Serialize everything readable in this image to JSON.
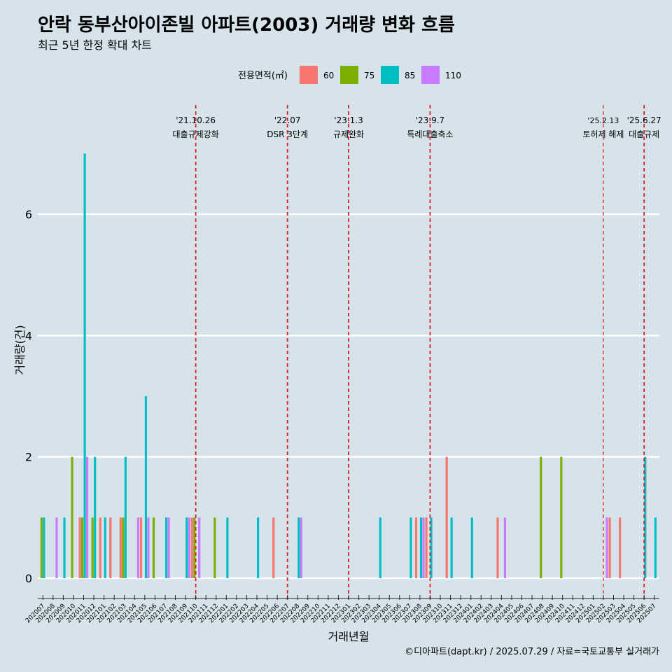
{
  "title": "안락 동부산아이존빌 아파트(2003) 거래량 변화 흐름",
  "subtitle": "최근 5년 한정 확대 차트",
  "caption": "©디아파트(dapt.kr) / 2025.07.29 / 자료=국토교통부 실거래가",
  "colors": {
    "background": "#d6e3ea",
    "grid": "#ffffff",
    "event_line": "#e31a1c"
  },
  "chart_data": {
    "type": "bar",
    "xlabel": "거래년월",
    "ylabel": "거래량(건)",
    "ylim": [
      -0.3,
      7.8
    ],
    "yticks": [
      0,
      2,
      4,
      6
    ],
    "grid": true,
    "legend": {
      "title": "전용면적(㎡)",
      "position": "top",
      "items": [
        {
          "name": "60",
          "color": "#f8766d"
        },
        {
          "name": "75",
          "color": "#7cae00"
        },
        {
          "name": "85",
          "color": "#00bfc4"
        },
        {
          "name": "110",
          "color": "#c77cff"
        }
      ]
    },
    "categories": [
      "202007",
      "202008",
      "202009",
      "202010",
      "202011",
      "202012",
      "202101",
      "202102",
      "202103",
      "202104",
      "202105",
      "202106",
      "202107",
      "202108",
      "202109",
      "202110",
      "202111",
      "202112",
      "202201",
      "202202",
      "202203",
      "202204",
      "202205",
      "202206",
      "202207",
      "202208",
      "202209",
      "202210",
      "202211",
      "202212",
      "202301",
      "202302",
      "202303",
      "202304",
      "202305",
      "202306",
      "202307",
      "202308",
      "202309",
      "202310",
      "202311",
      "202312",
      "202401",
      "202402",
      "202403",
      "202404",
      "202405",
      "202406",
      "202407",
      "202408",
      "202409",
      "202410",
      "202411",
      "202412",
      "202501",
      "202502",
      "202503",
      "202504",
      "202505",
      "202506",
      "202507"
    ],
    "series": [
      {
        "name": "60",
        "values": [
          0,
          0,
          0,
          0,
          1,
          0,
          1,
          1,
          1,
          0,
          1,
          0,
          0,
          0,
          0,
          1,
          0,
          0,
          0,
          0,
          0,
          0,
          0,
          1,
          0,
          0,
          0,
          0,
          0,
          0,
          0,
          0,
          0,
          0,
          0,
          0,
          0,
          1,
          1,
          0,
          2,
          0,
          0,
          0,
          0,
          1,
          0,
          0,
          0,
          0,
          0,
          0,
          0,
          0,
          0,
          0,
          1,
          1,
          0,
          0,
          0
        ]
      },
      {
        "name": "75",
        "values": [
          1,
          0,
          0,
          2,
          1,
          1,
          0,
          0,
          1,
          0,
          0,
          1,
          0,
          0,
          0,
          1,
          0,
          1,
          0,
          0,
          0,
          0,
          0,
          0,
          0,
          0,
          0,
          0,
          0,
          0,
          0,
          0,
          0,
          0,
          0,
          0,
          0,
          0,
          0,
          0,
          0,
          0,
          0,
          0,
          0,
          0,
          0,
          0,
          0,
          2,
          0,
          2,
          0,
          0,
          0,
          0,
          0,
          0,
          0,
          0,
          0
        ]
      },
      {
        "name": "85",
        "values": [
          1,
          0,
          1,
          0,
          7,
          2,
          1,
          0,
          2,
          0,
          3,
          0,
          1,
          0,
          1,
          0,
          0,
          0,
          1,
          0,
          0,
          1,
          0,
          0,
          0,
          1,
          0,
          0,
          0,
          0,
          0,
          0,
          0,
          1,
          0,
          0,
          1,
          1,
          1,
          0,
          1,
          0,
          1,
          0,
          0,
          0,
          0,
          0,
          0,
          0,
          0,
          0,
          0,
          0,
          0,
          0,
          0,
          0,
          0,
          2,
          1
        ]
      },
      {
        "name": "110",
        "values": [
          0,
          1,
          0,
          0,
          2,
          0,
          0,
          0,
          0,
          1,
          1,
          0,
          1,
          0,
          1,
          1,
          0,
          0,
          0,
          0,
          0,
          0,
          0,
          0,
          0,
          1,
          0,
          0,
          0,
          0,
          0,
          0,
          0,
          0,
          0,
          0,
          0,
          1,
          0,
          0,
          0,
          0,
          0,
          0,
          0,
          1,
          0,
          0,
          0,
          0,
          0,
          0,
          0,
          0,
          0,
          1,
          0,
          0,
          0,
          0,
          0
        ]
      }
    ],
    "annotations": [
      {
        "x": "202110",
        "date": "'21.10.26",
        "label": "대출규제강화",
        "style": "dashed"
      },
      {
        "x": "202207",
        "date": "'22.07",
        "label": "DSR 3단계",
        "style": "dashed"
      },
      {
        "x": "202301",
        "date": "'23.1.3",
        "label": "규제완화",
        "style": "dashed"
      },
      {
        "x": "202309",
        "date": "'23.9.7",
        "label": "특례대출축소",
        "style": "dashed"
      },
      {
        "x": "202502",
        "date": "'25.2.13",
        "label": "토허제 해제",
        "style": "dashed-thin"
      },
      {
        "x": "202506",
        "date": "'25.6.27",
        "label": "대출규제",
        "style": "dashed"
      }
    ]
  }
}
